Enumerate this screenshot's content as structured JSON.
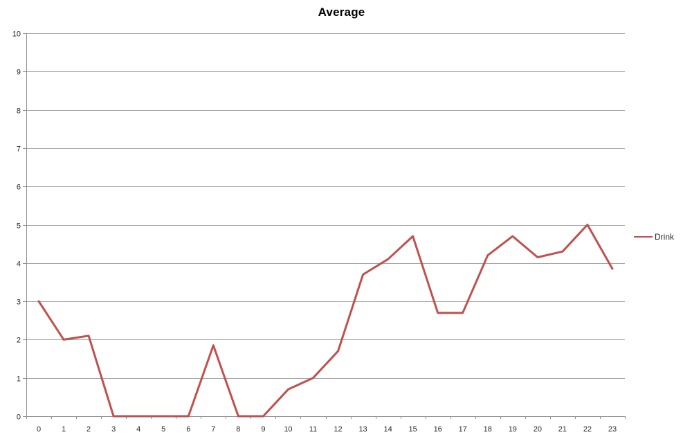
{
  "chart_data": {
    "type": "line",
    "title": "Average",
    "xlabel": "",
    "ylabel": "",
    "categories": [
      "0",
      "1",
      "2",
      "3",
      "4",
      "5",
      "6",
      "7",
      "8",
      "9",
      "10",
      "11",
      "12",
      "13",
      "14",
      "15",
      "16",
      "17",
      "18",
      "19",
      "20",
      "21",
      "22",
      "23"
    ],
    "series": [
      {
        "name": "Drink",
        "color": "#C0504D",
        "values": [
          3.0,
          2.0,
          2.1,
          0,
          0,
          0,
          0,
          1.85,
          0,
          0,
          0.7,
          1.0,
          1.7,
          3.7,
          4.1,
          4.7,
          2.7,
          2.7,
          4.2,
          4.7,
          4.15,
          4.3,
          5.0,
          3.85
        ]
      }
    ],
    "ylim": [
      0,
      10
    ],
    "y_ticks": [
      0,
      1,
      2,
      3,
      4,
      5,
      6,
      7,
      8,
      9,
      10
    ],
    "grid": "horizontal-only",
    "legend_position": "right"
  },
  "colors": {
    "series": "#C0504D",
    "gridline": "#A6A6A6",
    "axis": "#8E8E8E",
    "tick_text": "#262626",
    "title_text": "#000000",
    "background": "#FFFFFF"
  }
}
